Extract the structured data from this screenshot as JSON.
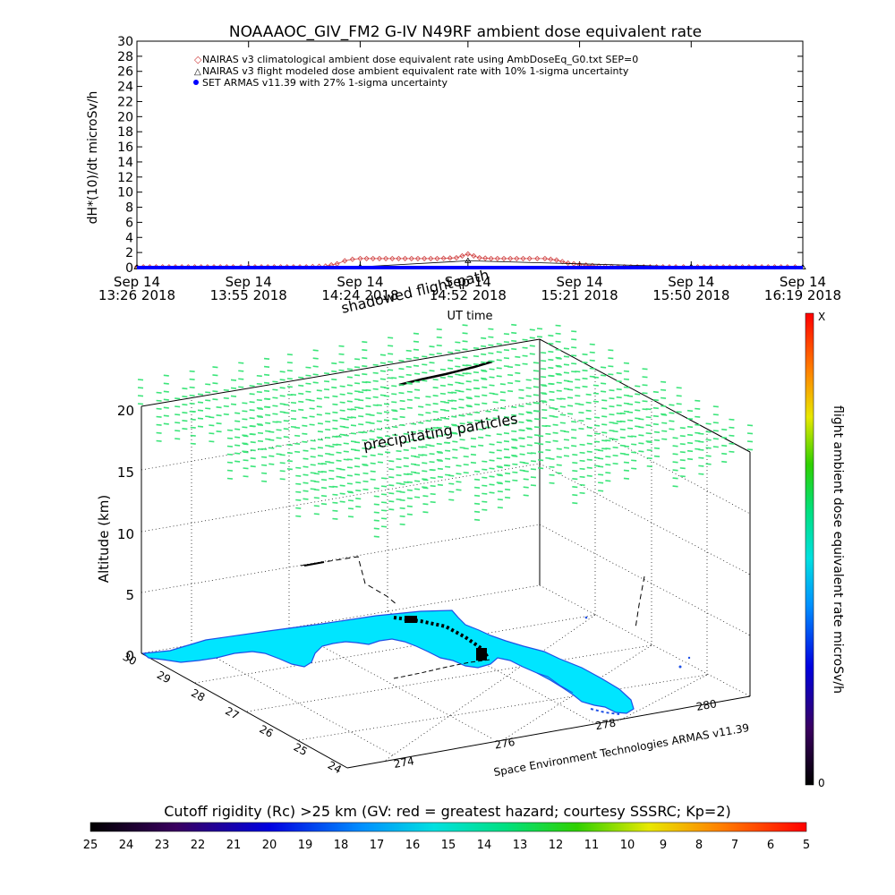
{
  "top_chart": {
    "title": "NOAAAOC_GIV_FM2 G-IV    N49RF  ambient dose equivalent rate",
    "ylabel": "dH*(10)/dt microSv/h",
    "xlabel": "UT time",
    "legend": [
      "NAIRAS v3 climatological ambient dose equivalent rate using AmbDoseEq_G0.txt SEP=0",
      "NAIRAS v3 flight modeled dose ambient equivalent rate with 10% 1-sigma uncertainty",
      "SET ARMAS v11.39 with 27% 1-sigma uncertainty"
    ],
    "y_ticks": [
      "0",
      "2",
      "4",
      "6",
      "8",
      "10",
      "12",
      "14",
      "16",
      "18",
      "20",
      "22",
      "24",
      "26",
      "28",
      "30"
    ],
    "x_ticks": [
      {
        "date": "Sep 14",
        "time": "13:26 2018"
      },
      {
        "date": "Sep 14",
        "time": "13:55 2018"
      },
      {
        "date": "Sep 14",
        "time": "14:24 2018"
      },
      {
        "date": "Sep 14",
        "time": "14:52 2018"
      },
      {
        "date": "Sep 14",
        "time": "15:21 2018"
      },
      {
        "date": "Sep 14",
        "time": "15:50 2018"
      },
      {
        "date": "Sep 14",
        "time": "16:19 2018"
      }
    ]
  },
  "chart_data": [
    {
      "type": "line",
      "title": "NOAAAOC_GIV_FM2 G-IV    N49RF  ambient dose equivalent rate",
      "xlabel": "UT time",
      "ylabel": "dH*(10)/dt microSv/h",
      "ylim": [
        0,
        30
      ],
      "xlim": [
        "13:26",
        "16:19"
      ],
      "series": [
        {
          "name": "NAIRAS v3 climatological ambient dose equivalent rate using AmbDoseEq_G0.txt SEP=0",
          "color": "#d04040",
          "marker": "diamond",
          "x": [
            "13:26",
            "13:31",
            "13:36",
            "13:41",
            "13:46",
            "13:51",
            "13:55",
            "14:00",
            "14:05",
            "14:10",
            "14:15",
            "14:18",
            "14:20",
            "14:22",
            "14:24",
            "14:29",
            "14:34",
            "14:39",
            "14:44",
            "14:49",
            "14:52",
            "14:55",
            "14:58",
            "15:03",
            "15:08",
            "15:12",
            "15:15",
            "15:18",
            "15:21",
            "15:26",
            "15:31",
            "15:36",
            "15:41",
            "15:46",
            "15:50",
            "15:55",
            "16:00",
            "16:05",
            "16:10",
            "16:15",
            "16:19"
          ],
          "values": [
            0.1,
            0.1,
            0.1,
            0.1,
            0.1,
            0.1,
            0.1,
            0.1,
            0.1,
            0.1,
            0.2,
            0.5,
            0.9,
            1.1,
            1.2,
            1.2,
            1.2,
            1.2,
            1.2,
            1.3,
            1.8,
            1.3,
            1.2,
            1.2,
            1.2,
            1.2,
            1.0,
            0.6,
            0.4,
            0.2,
            0.1,
            0.1,
            0.1,
            0.1,
            0.1,
            0.1,
            0.1,
            0.1,
            0.1,
            0.1,
            0.1
          ]
        },
        {
          "name": "NAIRAS v3 flight modeled dose ambient equivalent rate with 10% 1-sigma uncertainty",
          "color": "#000000",
          "marker": "triangle",
          "x": [
            "13:26",
            "14:24",
            "14:52",
            "15:50",
            "16:19"
          ],
          "values": [
            0.05,
            0.1,
            0.9,
            0.1,
            0.05
          ]
        },
        {
          "name": "SET ARMAS v11.39 with 27% 1-sigma uncertainty",
          "color": "#0000ff",
          "marker": "circle",
          "x": [
            "13:26",
            "16:19"
          ],
          "values": [
            0.0,
            0.0
          ]
        }
      ]
    },
    {
      "type": "scatter",
      "title": "",
      "zlabel": "Altitude (km)",
      "z_ticks": [
        "0",
        "5",
        "10",
        "15",
        "20"
      ],
      "lat_ticks": [
        "30",
        "29",
        "28",
        "27",
        "26",
        "25",
        "24"
      ],
      "lon_ticks": [
        "274",
        "276",
        "278",
        "280"
      ],
      "colorbar_label": "flight ambient dose equivalent rate microSv/h",
      "colorbar_min": "0",
      "colorbar_max": "X"
    }
  ],
  "annotations": {
    "shadowed_flight_path": "shadowed flight path",
    "precipitating_particles": "precipitating particles",
    "credit": "Space Environment Technologies ARMAS v11.39"
  },
  "bottom_bar": {
    "title": "Cutoff rigidity (Rc) >25 km (GV: red = greatest hazard; courtesy SSSRC; Kp=2)",
    "ticks": [
      "25",
      "24",
      "23",
      "22",
      "21",
      "20",
      "19",
      "18",
      "17",
      "16",
      "15",
      "14",
      "13",
      "12",
      "11",
      "10",
      "9",
      "8",
      "7",
      "6",
      "5"
    ]
  },
  "colors": {
    "particles": "#3ce57a",
    "florida_fill": "#00e5ff",
    "florida_edge": "#1e50e6",
    "climatological": "#d04040",
    "armas": "#0000ff"
  }
}
